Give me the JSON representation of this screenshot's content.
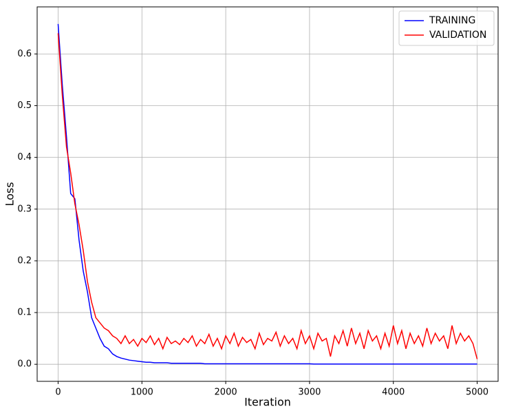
{
  "chart_data": {
    "type": "line",
    "xlabel": "Iteration",
    "ylabel": "Loss",
    "x": [
      0,
      50,
      100,
      150,
      200,
      250,
      300,
      350,
      400,
      450,
      500,
      550,
      600,
      650,
      700,
      750,
      800,
      850,
      900,
      950,
      1000,
      1050,
      1100,
      1150,
      1200,
      1250,
      1300,
      1350,
      1400,
      1450,
      1500,
      1550,
      1600,
      1650,
      1700,
      1750,
      1800,
      1850,
      1900,
      1950,
      2000,
      2050,
      2100,
      2150,
      2200,
      2250,
      2300,
      2350,
      2400,
      2450,
      2500,
      2550,
      2600,
      2650,
      2700,
      2750,
      2800,
      2850,
      2900,
      2950,
      3000,
      3050,
      3100,
      3150,
      3200,
      3250,
      3300,
      3350,
      3400,
      3450,
      3500,
      3550,
      3600,
      3650,
      3700,
      3750,
      3800,
      3850,
      3900,
      3950,
      4000,
      4050,
      4100,
      4150,
      4200,
      4250,
      4300,
      4350,
      4400,
      4450,
      4500,
      4550,
      4600,
      4650,
      4700,
      4750,
      4800,
      4850,
      4900,
      4950,
      5000
    ],
    "series": [
      {
        "name": "TRAINING",
        "color": "#0000ff",
        "values": [
          0.658,
          0.54,
          0.44,
          0.33,
          0.32,
          0.24,
          0.18,
          0.14,
          0.09,
          0.07,
          0.05,
          0.035,
          0.03,
          0.02,
          0.015,
          0.012,
          0.01,
          0.008,
          0.007,
          0.006,
          0.005,
          0.004,
          0.004,
          0.003,
          0.003,
          0.003,
          0.003,
          0.002,
          0.002,
          0.002,
          0.002,
          0.002,
          0.002,
          0.002,
          0.002,
          0.001,
          0.001,
          0.001,
          0.001,
          0.001,
          0.001,
          0.001,
          0.001,
          0.001,
          0.001,
          0.001,
          0.001,
          0.001,
          0.001,
          0.001,
          0.001,
          0.001,
          0.001,
          0.001,
          0.001,
          0.001,
          0.001,
          0.001,
          0.001,
          0.001,
          0.001,
          0.0005,
          0.0005,
          0.0005,
          0.0005,
          0.0005,
          0.0005,
          0.0005,
          0.0005,
          0.0005,
          0.0005,
          0.0005,
          0.0005,
          0.0005,
          0.0005,
          0.0005,
          0.0005,
          0.0005,
          0.0005,
          0.0005,
          0.0005,
          0.0005,
          0.0005,
          0.0005,
          0.0005,
          0.0005,
          0.0005,
          0.0005,
          0.0005,
          0.0005,
          0.0005,
          0.0005,
          0.0005,
          0.0005,
          0.0005,
          0.0005,
          0.0005,
          0.0005,
          0.0005,
          0.0005,
          0.0005
        ]
      },
      {
        "name": "VALIDATION",
        "color": "#ff0000",
        "values": [
          0.64,
          0.52,
          0.42,
          0.37,
          0.31,
          0.27,
          0.22,
          0.16,
          0.12,
          0.09,
          0.08,
          0.07,
          0.065,
          0.055,
          0.05,
          0.04,
          0.055,
          0.04,
          0.048,
          0.035,
          0.05,
          0.042,
          0.055,
          0.038,
          0.05,
          0.03,
          0.052,
          0.04,
          0.045,
          0.038,
          0.05,
          0.042,
          0.055,
          0.035,
          0.048,
          0.04,
          0.058,
          0.035,
          0.05,
          0.03,
          0.055,
          0.04,
          0.06,
          0.035,
          0.052,
          0.042,
          0.048,
          0.03,
          0.06,
          0.038,
          0.05,
          0.045,
          0.062,
          0.035,
          0.055,
          0.04,
          0.05,
          0.03,
          0.065,
          0.04,
          0.055,
          0.03,
          0.06,
          0.045,
          0.05,
          0.015,
          0.055,
          0.04,
          0.065,
          0.035,
          0.07,
          0.04,
          0.06,
          0.03,
          0.065,
          0.045,
          0.055,
          0.03,
          0.06,
          0.035,
          0.075,
          0.04,
          0.065,
          0.03,
          0.06,
          0.04,
          0.055,
          0.035,
          0.07,
          0.04,
          0.06,
          0.045,
          0.055,
          0.03,
          0.075,
          0.04,
          0.06,
          0.045,
          0.055,
          0.04,
          0.01
        ]
      }
    ],
    "xlim": [
      -250,
      5250
    ],
    "xticks": [
      0,
      1000,
      2000,
      3000,
      4000,
      5000
    ],
    "ylim": [
      -0.033,
      0.691
    ],
    "yticks": [
      {
        "value": 0,
        "label": "0.0"
      },
      0.1,
      0.2,
      0.3,
      0.4,
      0.5,
      0.6
    ],
    "grid": true,
    "legend": "upper right"
  }
}
